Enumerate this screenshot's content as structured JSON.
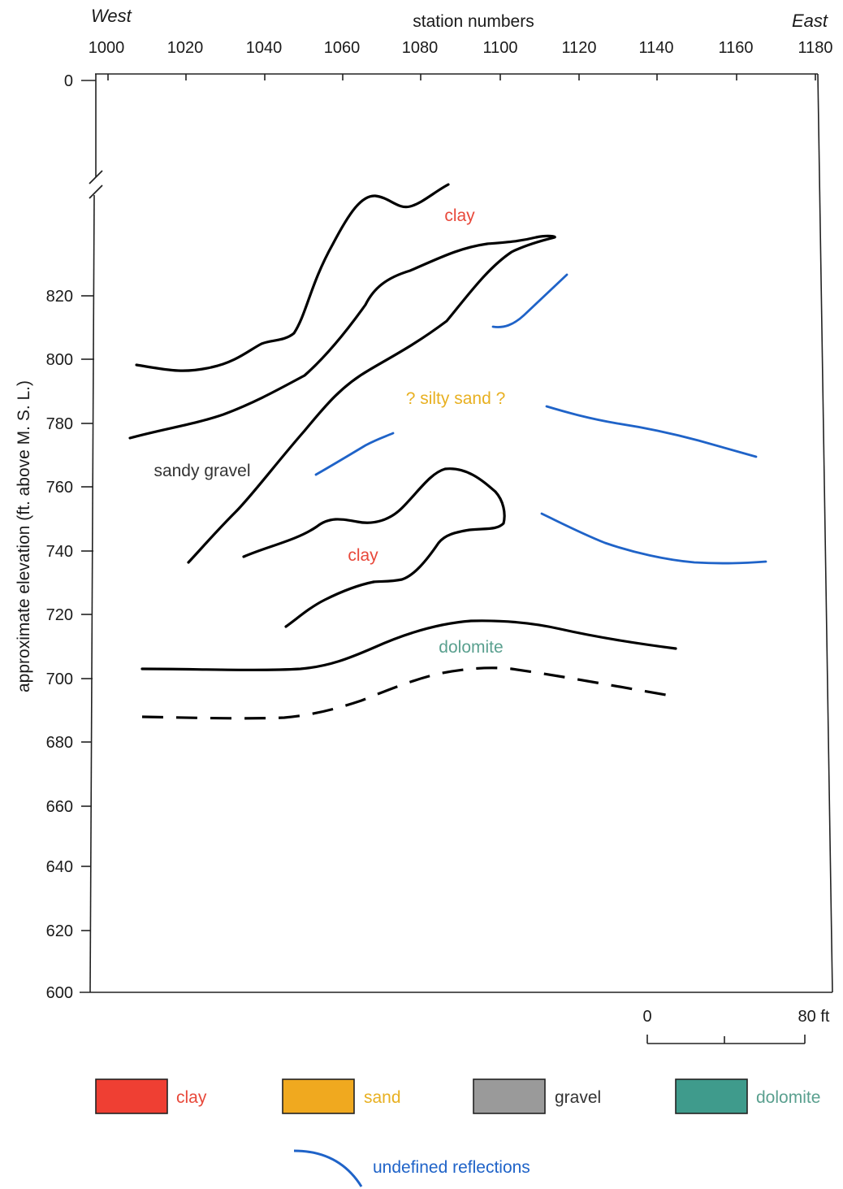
{
  "header": {
    "west_label": "West",
    "east_label": "East",
    "x_axis_title": "station numbers",
    "y_axis_title": "approximate elevation (ft. above M. S. L.)"
  },
  "x_axis": {
    "ticks": [
      "1000",
      "1020",
      "1040",
      "1060",
      "1080",
      "1100",
      "1120",
      "1140",
      "1160",
      "1180"
    ]
  },
  "y_axis": {
    "top_label": "0",
    "ticks": [
      "820",
      "800",
      "780",
      "760",
      "740",
      "720",
      "700",
      "680",
      "660",
      "640",
      "620",
      "600"
    ],
    "axis_break": true
  },
  "layer_labels": [
    {
      "text": "clay",
      "color": "#e8483a"
    },
    {
      "text": "? silty sand ?",
      "color": "#e8b021"
    },
    {
      "text": "sandy gravel",
      "color": "#333333"
    },
    {
      "text": "clay",
      "color": "#e8483a"
    },
    {
      "text": "dolomite",
      "color": "#5aa08f"
    }
  ],
  "boundaries": {
    "solid_color": "#000000",
    "reflection_color": "#1f63c8",
    "dashed_boundary": "dolomite lower boundary (dashed)"
  },
  "scale_bar": {
    "left_label": "0",
    "right_label": "80 ft"
  },
  "legend": {
    "items": [
      {
        "label": "clay",
        "swatch_color": "#ef3f33",
        "text_color": "#e8483a"
      },
      {
        "label": "sand",
        "swatch_color": "#f0a91f",
        "text_color": "#e8b021"
      },
      {
        "label": "gravel",
        "swatch_color": "#9a9a9a",
        "text_color": "#333333"
      },
      {
        "label": "dolomite",
        "swatch_color": "#3f9b8c",
        "text_color": "#5aa08f"
      }
    ],
    "reflection_label": "undefined reflections",
    "reflection_color": "#1f63c8"
  }
}
